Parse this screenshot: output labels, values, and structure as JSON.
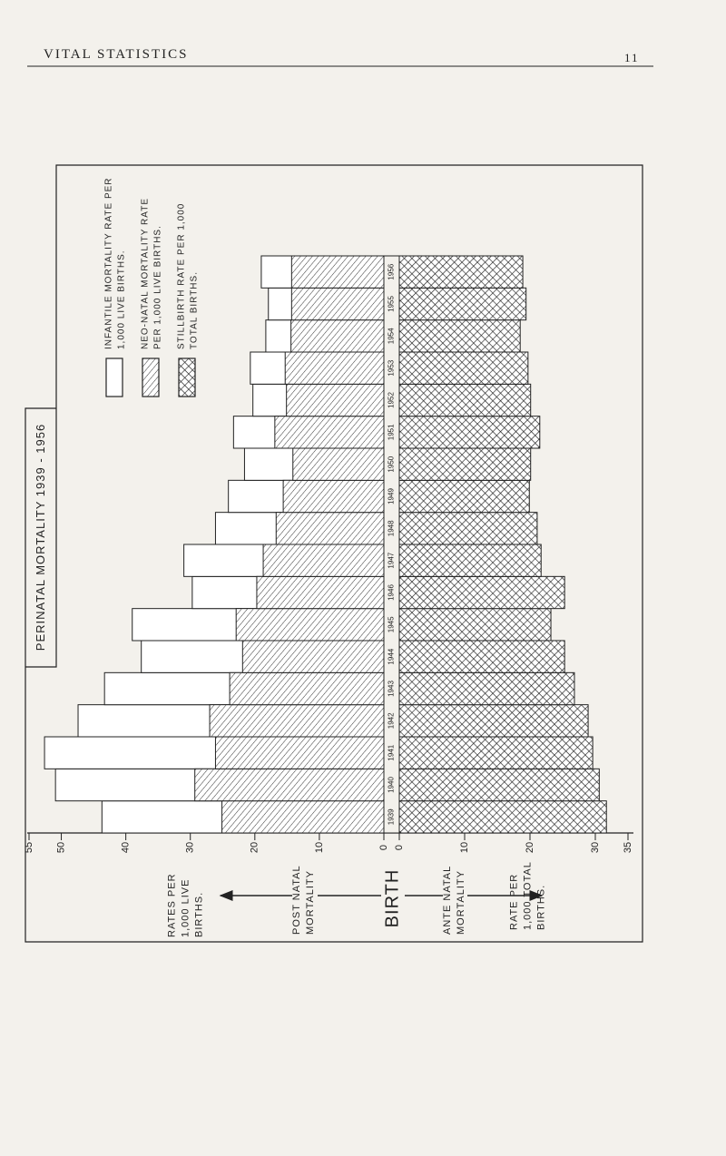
{
  "header": {
    "title": "VITAL STATISTICS",
    "page": "11"
  },
  "chart_data": {
    "type": "bar",
    "title": "PERINATAL MORTALITY 1939 - 1956",
    "categories": [
      "1939",
      "1940",
      "1941",
      "1942",
      "1943",
      "1944",
      "1945",
      "1946",
      "1947",
      "1948",
      "1949",
      "1950",
      "1951",
      "1952",
      "1953",
      "1954",
      "1955",
      "1956"
    ],
    "series": [
      {
        "name": "INFANTILE MORTALITY RATE PER 1,000 LIVE BIRTHS.",
        "color": "#ffffff",
        "pattern": "none",
        "values": [
          43.7,
          50.9,
          52.6,
          47.4,
          43.3,
          37.6,
          39.0,
          29.7,
          31.0,
          26.1,
          24.1,
          21.6,
          23.3,
          20.3,
          20.7,
          18.3,
          17.9,
          19.0
        ]
      },
      {
        "name": "NEO-NATAL MORTALITY RATE PER 1,000 LIVE BIRTHS.",
        "color": "#333333",
        "pattern": "diagonal",
        "values": [
          25.1,
          29.3,
          26.1,
          27.0,
          23.9,
          21.9,
          22.9,
          19.7,
          18.7,
          16.7,
          15.6,
          14.1,
          16.9,
          15.1,
          15.3,
          14.4,
          14.3,
          14.3
        ]
      },
      {
        "name": "STILLBIRTH RATE PER 1,000 TOTAL BIRTHS.",
        "color": "#333333",
        "pattern": "crosshatch",
        "axis": "x2",
        "values": [
          31.7,
          30.6,
          29.6,
          28.9,
          26.8,
          25.3,
          23.2,
          25.3,
          21.7,
          21.1,
          19.9,
          20.1,
          21.5,
          20.1,
          19.7,
          18.5,
          19.4,
          18.9
        ]
      }
    ],
    "xlim": [
      0,
      55
    ],
    "xticks": [
      0,
      10,
      20,
      30,
      40,
      50,
      55
    ],
    "x2lim": [
      0,
      35
    ],
    "x2ticks": [
      0,
      10,
      20,
      30,
      35
    ],
    "x_label": "RATES PER 1,000 LIVE BIRTHS.",
    "x2_label": "RATE PER 1,000 TOTAL BIRTHS.",
    "annotations": [
      "POST NATAL MORTALITY",
      "BIRTH",
      "ANTE NATAL MORTALITY"
    ]
  }
}
